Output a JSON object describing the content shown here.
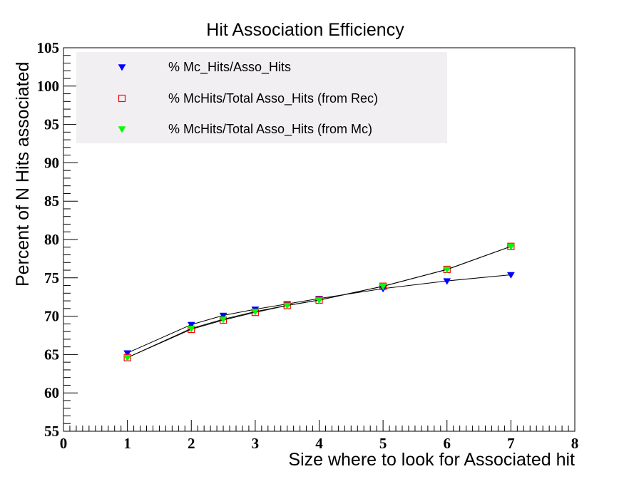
{
  "chart_data": {
    "type": "line",
    "title": "Hit Association Efficiency",
    "xlabel": "Size where to look for Associated hit",
    "ylabel": "Percent of N Hits associated",
    "xlim": [
      0,
      8
    ],
    "ylim": [
      55,
      105
    ],
    "x_ticks": [
      "0",
      "1",
      "2",
      "3",
      "4",
      "5",
      "6",
      "7",
      "8"
    ],
    "y_ticks": [
      "55",
      "60",
      "65",
      "70",
      "75",
      "80",
      "85",
      "90",
      "95",
      "100",
      "105"
    ],
    "grid": false,
    "legend_position": "top-left",
    "x": [
      1,
      2,
      2.5,
      3,
      3.5,
      4,
      5,
      6,
      7
    ],
    "series": [
      {
        "name": "% Mc_Hits/Asso_Hits",
        "marker": "triangle-down",
        "color": "#0000ff",
        "values": [
          65.2,
          68.9,
          70.1,
          70.9,
          71.6,
          72.3,
          73.6,
          74.6,
          75.4
        ]
      },
      {
        "name": "% McHits/Total Asso_Hits (from Rec)",
        "marker": "open-square",
        "color": "#ff0000",
        "values": [
          64.6,
          68.3,
          69.5,
          70.5,
          71.4,
          72.1,
          73.9,
          76.1,
          79.1
        ]
      },
      {
        "name": "% McHits/Total Asso_Hits (from Mc)",
        "marker": "triangle-down",
        "color": "#00ff00",
        "values": [
          64.6,
          68.4,
          69.6,
          70.6,
          71.4,
          72.1,
          73.9,
          76.1,
          79.1
        ]
      }
    ]
  }
}
